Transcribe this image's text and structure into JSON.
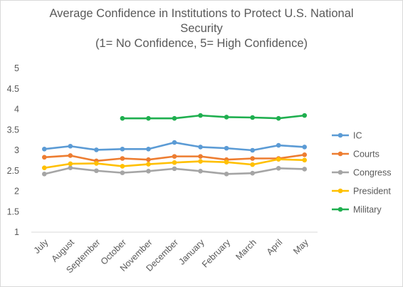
{
  "chart_data": {
    "type": "line",
    "title_lines": [
      "Average Confidence in Institutions to Protect U.S. National",
      "Security",
      "(1= No Confidence, 5= High Confidence)"
    ],
    "categories": [
      "July",
      "August",
      "September",
      "October",
      "November",
      "December",
      "January",
      "February",
      "March",
      "April",
      "May"
    ],
    "ylim": [
      1,
      5
    ],
    "yticks": [
      "1",
      "1.5",
      "2",
      "2.5",
      "3",
      "3.5",
      "4",
      "4.5",
      "5"
    ],
    "grid": false,
    "legend_position": "right",
    "series": [
      {
        "name": "IC",
        "color": "#5b9bd5",
        "values": [
          3.03,
          3.1,
          3.01,
          3.03,
          3.03,
          3.19,
          3.08,
          3.05,
          3.0,
          3.12,
          3.08
        ]
      },
      {
        "name": "Courts",
        "color": "#ed7d31",
        "values": [
          2.83,
          2.87,
          2.74,
          2.8,
          2.77,
          2.85,
          2.85,
          2.77,
          2.8,
          2.8,
          2.89
        ]
      },
      {
        "name": "Congress",
        "color": "#a5a5a5",
        "values": [
          2.42,
          2.57,
          2.5,
          2.45,
          2.49,
          2.55,
          2.49,
          2.42,
          2.44,
          2.56,
          2.54
        ]
      },
      {
        "name": "President",
        "color": "#ffc000",
        "values": [
          2.57,
          2.67,
          2.68,
          2.61,
          2.66,
          2.7,
          2.73,
          2.71,
          2.65,
          2.78,
          2.76
        ]
      },
      {
        "name": "Military",
        "color": "#1faf4f",
        "values": [
          null,
          null,
          null,
          3.78,
          3.78,
          3.78,
          3.85,
          3.81,
          3.8,
          3.78,
          3.85
        ]
      }
    ]
  }
}
